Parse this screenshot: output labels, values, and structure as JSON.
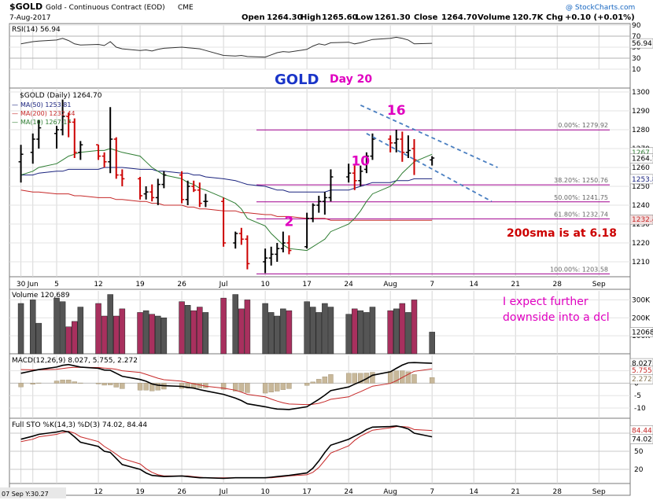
{
  "header": {
    "symbol": "$GOLD",
    "name": "Gold - Continuous Contract (EOD)",
    "exchange": "CME",
    "date": "7-Aug-2017",
    "open_label": "Open",
    "open": "1264.30",
    "high_label": "High",
    "high": "1265.60",
    "low_label": "Low",
    "low": "1261.30",
    "close_label": "Close",
    "close": "1264.70",
    "volume_label": "Volume",
    "volume": "120.7K",
    "chg_label": "Chg",
    "chg": "+0.10 (+0.01%)",
    "watermark": "@ StockCharts.com"
  },
  "annotations": {
    "title": "GOLD",
    "day": "Day 20",
    "sma_note": "200sma is at 6.18",
    "expect_line1": "I expect further",
    "expect_line2": "downside into a dcl",
    "cycle_counts": [
      {
        "label": "2",
        "x": "2017-07-14",
        "y": 1229
      },
      {
        "label": "10",
        "x": "2017-07-26",
        "y": 1261
      },
      {
        "label": "16",
        "x": "2017-08-01",
        "y": 1288
      }
    ],
    "footer_left": "07 Sep Y:30.27"
  },
  "colors": {
    "price_up": "#000000",
    "price_down": "#cc0000",
    "ma50": "#1a237e",
    "ma200": "#c62828",
    "ma10": "#2e7d32",
    "fib": "#a0008f",
    "trend": "#4a7fc1",
    "pink": "#e000c0",
    "vol_up": "#555555",
    "vol_down": "#a8305e",
    "macd_hist": "#c8b89a"
  },
  "chart_data": [
    {
      "type": "line",
      "name": "rsi",
      "title": "RSI(14) 56.94",
      "ylim": [
        10,
        90
      ],
      "yticks": [
        90,
        70,
        50,
        30,
        10
      ],
      "last_label": "56.94",
      "levels": [
        70,
        30
      ],
      "x": [
        "2017-05-30",
        "2017-06-01",
        "2017-06-02",
        "2017-06-05",
        "2017-06-06",
        "2017-06-07",
        "2017-06-08",
        "2017-06-09",
        "2017-06-12",
        "2017-06-13",
        "2017-06-14",
        "2017-06-15",
        "2017-06-16",
        "2017-06-19",
        "2017-06-20",
        "2017-06-21",
        "2017-06-22",
        "2017-06-23",
        "2017-06-26",
        "2017-06-27",
        "2017-06-28",
        "2017-06-29",
        "2017-06-30",
        "2017-07-03",
        "2017-07-05",
        "2017-07-06",
        "2017-07-07",
        "2017-07-10",
        "2017-07-11",
        "2017-07-12",
        "2017-07-13",
        "2017-07-14",
        "2017-07-17",
        "2017-07-18",
        "2017-07-19",
        "2017-07-20",
        "2017-07-21",
        "2017-07-24",
        "2017-07-25",
        "2017-07-26",
        "2017-07-27",
        "2017-07-28",
        "2017-07-31",
        "2017-08-01",
        "2017-08-02",
        "2017-08-03",
        "2017-08-04",
        "2017-08-07"
      ],
      "values": [
        56,
        60,
        61,
        63,
        66,
        62,
        56,
        54,
        55,
        53,
        60,
        50,
        47,
        44,
        45,
        43,
        46,
        48,
        50,
        49,
        48,
        47,
        44,
        35,
        34,
        35,
        33,
        32,
        36,
        40,
        42,
        41,
        46,
        52,
        56,
        54,
        58,
        59,
        56,
        58,
        61,
        64,
        66,
        68,
        66,
        63,
        56,
        57
      ]
    },
    {
      "type": "candlestick",
      "name": "price",
      "title": "$GOLD (Daily) 1264.70",
      "ylim": [
        1200,
        1300
      ],
      "yticks": [
        1300,
        1290,
        1280,
        1270,
        1260,
        1250,
        1240,
        1230,
        1220,
        1210
      ],
      "xtick_labels": [
        "30",
        "Jun",
        "5",
        "12",
        "19",
        "26",
        "Jul",
        "10",
        "17",
        "24",
        "Aug",
        "7",
        "14",
        "21",
        "28",
        "Sep"
      ],
      "last_labels": [
        "1267",
        "1264.7",
        "1253.8",
        "1232.4"
      ],
      "legend": [
        {
          "name": "MA(50) 1253.81"
        },
        {
          "name": "MA(200) 1232.44"
        },
        {
          "name": "MA(10) 1267.17"
        }
      ],
      "fib_levels": [
        {
          "label": "0.00%: 1279.92",
          "value": 1279.92
        },
        {
          "label": "38.20%: 1250.76",
          "value": 1250.76
        },
        {
          "label": "50.00%: 1241.75",
          "value": 1241.75
        },
        {
          "label": "61.80%: 1232.74",
          "value": 1232.74
        },
        {
          "label": "100.00%: 1203.58",
          "value": 1203.58
        }
      ],
      "ohlc": [
        [
          1263,
          1272,
          1252,
          1267
        ],
        [
          1268,
          1278,
          1262,
          1275
        ],
        [
          1275,
          1285,
          1270,
          1281
        ],
        [
          1278,
          1282,
          1270,
          1280
        ],
        [
          1280,
          1296,
          1277,
          1287
        ],
        [
          1287,
          1289,
          1276,
          1284
        ],
        [
          1284,
          1286,
          1265,
          1268
        ],
        [
          1268,
          1274,
          1264,
          1272
        ],
        [
          1272,
          1272,
          1264,
          1266
        ],
        [
          1266,
          1268,
          1260,
          1263
        ],
        [
          1263,
          1292,
          1257,
          1275
        ],
        [
          1275,
          1276,
          1254,
          1256
        ],
        [
          1256,
          1259,
          1250,
          1254
        ],
        [
          1254,
          1255,
          1243,
          1245
        ],
        [
          1246,
          1250,
          1243,
          1247
        ],
        [
          1247,
          1251,
          1242,
          1244
        ],
        [
          1244,
          1254,
          1240,
          1251
        ],
        [
          1251,
          1258,
          1249,
          1256
        ],
        [
          1256,
          1258,
          1241,
          1243
        ],
        [
          1243,
          1253,
          1240,
          1250
        ],
        [
          1250,
          1253,
          1247,
          1248
        ],
        [
          1248,
          1252,
          1239,
          1241
        ],
        [
          1242,
          1246,
          1239,
          1242
        ],
        [
          1242,
          1244,
          1218,
          1220
        ],
        [
          1220,
          1226,
          1217,
          1225
        ],
        [
          1225,
          1228,
          1219,
          1222
        ],
        [
          1222,
          1224,
          1206,
          1209
        ],
        [
          1210,
          1217,
          1204,
          1212
        ],
        [
          1212,
          1218,
          1208,
          1214
        ],
        [
          1214,
          1220,
          1210,
          1217
        ],
        [
          1217,
          1226,
          1215,
          1220
        ],
        [
          1220,
          1224,
          1214,
          1216
        ],
        [
          1218,
          1236,
          1217,
          1233
        ],
        [
          1233,
          1241,
          1231,
          1240
        ],
        [
          1240,
          1245,
          1236,
          1242
        ],
        [
          1242,
          1247,
          1235,
          1244
        ],
        [
          1244,
          1259,
          1242,
          1255
        ],
        [
          1255,
          1262,
          1252,
          1257
        ],
        [
          1257,
          1261,
          1248,
          1253
        ],
        [
          1253,
          1261,
          1250,
          1258
        ],
        [
          1259,
          1268,
          1257,
          1266
        ],
        [
          1266,
          1278,
          1264,
          1275
        ],
        [
          1275,
          1277,
          1268,
          1273
        ],
        [
          1273,
          1280,
          1268,
          1275
        ],
        [
          1275,
          1279,
          1263,
          1268
        ],
        [
          1268,
          1277,
          1265,
          1269
        ],
        [
          1270,
          1275,
          1256,
          1264
        ],
        [
          1264,
          1266,
          1261,
          1265
        ]
      ],
      "ma10": [
        1256,
        1258,
        1260,
        1262,
        1264,
        1266,
        1267,
        1268,
        1269,
        1269,
        1270,
        1269,
        1268,
        1266,
        1263,
        1260,
        1258,
        1256,
        1254,
        1252,
        1251,
        1249,
        1248,
        1244,
        1241,
        1238,
        1233,
        1229,
        1225,
        1222,
        1219,
        1217,
        1216,
        1218,
        1220,
        1222,
        1226,
        1230,
        1233,
        1237,
        1242,
        1246,
        1250,
        1253,
        1257,
        1260,
        1263,
        1267
      ],
      "ma50": [
        1256,
        1256,
        1257,
        1258,
        1258,
        1259,
        1259,
        1259,
        1259,
        1260,
        1260,
        1260,
        1260,
        1259,
        1259,
        1259,
        1258,
        1258,
        1257,
        1257,
        1256,
        1256,
        1255,
        1254,
        1253,
        1252,
        1251,
        1250,
        1249,
        1248,
        1248,
        1247,
        1247,
        1247,
        1247,
        1247,
        1248,
        1248,
        1249,
        1250,
        1251,
        1252,
        1252,
        1253,
        1253,
        1253,
        1254,
        1254
      ],
      "ma200": [
        1248,
        1247,
        1247,
        1246,
        1246,
        1246,
        1245,
        1245,
        1244,
        1244,
        1244,
        1243,
        1243,
        1242,
        1242,
        1241,
        1241,
        1240,
        1240,
        1239,
        1239,
        1238,
        1238,
        1237,
        1237,
        1236,
        1236,
        1235,
        1235,
        1234,
        1234,
        1234,
        1233,
        1233,
        1233,
        1233,
        1232,
        1232,
        1232,
        1232,
        1232,
        1232,
        1232,
        1232,
        1232,
        1232,
        1232,
        1232
      ],
      "trendlines": [
        {
          "from": [
            "2017-07-26",
            1293
          ],
          "to": [
            "2017-08-18",
            1260
          ]
        },
        {
          "from": [
            "2017-07-27",
            1278
          ],
          "to": [
            "2017-08-17",
            1242
          ]
        }
      ]
    },
    {
      "type": "bar",
      "name": "volume",
      "title": "Volume 120,689",
      "yticks": [
        "300K",
        "200K",
        "100K"
      ],
      "ylim": [
        0,
        350000
      ],
      "last_label": "120689",
      "values": [
        280000,
        300000,
        170000,
        310000,
        290000,
        150000,
        180000,
        260000,
        280000,
        210000,
        330000,
        210000,
        250000,
        230000,
        240000,
        220000,
        210000,
        200000,
        290000,
        270000,
        240000,
        260000,
        230000,
        310000,
        330000,
        250000,
        300000,
        280000,
        230000,
        210000,
        250000,
        240000,
        290000,
        260000,
        230000,
        280000,
        260000,
        220000,
        250000,
        240000,
        230000,
        260000,
        240000,
        250000,
        280000,
        230000,
        300000,
        120689
      ]
    },
    {
      "type": "line",
      "name": "macd",
      "title": "MACD(12,26,9) 8.027, 5.755, 2.272",
      "ylim": [
        -15,
        10
      ],
      "yticks": [
        "5",
        "0",
        "-5",
        "-10"
      ],
      "last_labels": [
        "8.027",
        "5.755",
        "2.272"
      ],
      "macd": [
        4,
        5,
        5.5,
        6.5,
        7.2,
        7.5,
        7,
        6.5,
        6,
        5.3,
        5.2,
        4,
        2.8,
        1.5,
        0.8,
        -0.3,
        -0.8,
        -1,
        -1.3,
        -1.7,
        -2,
        -2.6,
        -3.1,
        -4.5,
        -6,
        -7,
        -8.3,
        -9.5,
        -10,
        -10.4,
        -10.5,
        -10.6,
        -9.5,
        -8,
        -6.5,
        -4.8,
        -3,
        -1.5,
        -0.4,
        0.6,
        1.8,
        3.2,
        4.6,
        6,
        7.3,
        8.2,
        8.3,
        8.03
      ],
      "signal": [
        5.5,
        5.4,
        5.4,
        5.6,
        5.9,
        6.2,
        6.4,
        6.4,
        6.3,
        6.1,
        5.9,
        5.6,
        5,
        4.3,
        3.6,
        2.8,
        2,
        1.4,
        0.8,
        0.3,
        -0.2,
        -0.7,
        -1.2,
        -2,
        -2.8,
        -3.6,
        -4.5,
        -5.5,
        -6.4,
        -7.2,
        -7.9,
        -8.4,
        -8.6,
        -8.5,
        -8.1,
        -7.4,
        -6.5,
        -5.5,
        -4.4,
        -3.4,
        -2.3,
        -1.2,
        -0.1,
        1,
        2.3,
        3.6,
        4.8,
        5.755
      ],
      "hist": [
        -1.5,
        -0.4,
        0.1,
        0.9,
        1.3,
        1.3,
        0.6,
        0.1,
        -0.3,
        -0.8,
        -0.7,
        -1.6,
        -2.2,
        -2.8,
        -2.8,
        -3.1,
        -2.8,
        -2.4,
        -2.1,
        -2,
        -1.8,
        -1.9,
        -1.9,
        -2.5,
        -3.2,
        -3.4,
        -3.8,
        -4,
        -3.6,
        -3.2,
        -2.6,
        -2.2,
        -0.9,
        0.5,
        1.6,
        2.6,
        3.5,
        4,
        4,
        4,
        4.1,
        4.4,
        4.7,
        5,
        5,
        4.6,
        3.5,
        2.272
      ]
    },
    {
      "type": "line",
      "name": "stochastic",
      "title": "Full STO %K(14,3) %D(3) 74.02, 84.44",
      "ylim": [
        0,
        100
      ],
      "yticks": [
        "80",
        "50",
        "20"
      ],
      "last_labels": [
        "84.44",
        "74.02"
      ],
      "k": [
        70,
        75,
        78,
        82,
        84,
        82,
        74,
        65,
        58,
        50,
        48,
        38,
        28,
        20,
        14,
        10,
        9,
        8,
        9,
        8,
        7,
        6,
        6,
        5,
        6,
        6,
        6,
        6,
        7,
        8,
        9,
        10,
        14,
        22,
        34,
        48,
        60,
        70,
        75,
        80,
        86,
        90,
        91,
        92,
        90,
        87,
        80,
        74.02
      ],
      "d": [
        66,
        70,
        74,
        78,
        81,
        83,
        80,
        74,
        66,
        58,
        52,
        45,
        38,
        29,
        21,
        15,
        11,
        9,
        9,
        9,
        8,
        7,
        6,
        6,
        6,
        6,
        6,
        6,
        6,
        7,
        8,
        9,
        11,
        15,
        23,
        35,
        47,
        59,
        68,
        75,
        80,
        85,
        89,
        91,
        91,
        90,
        86,
        84.44
      ]
    }
  ]
}
